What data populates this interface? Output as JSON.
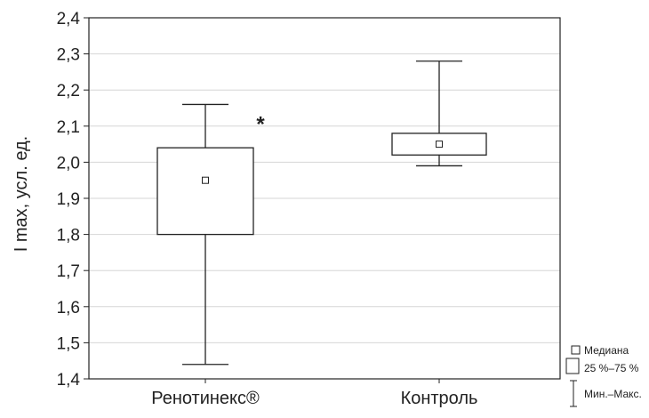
{
  "chart_data": {
    "type": "boxplot",
    "ylabel": "I max, усл. ед.",
    "ylim": [
      1.4,
      2.4
    ],
    "yticks": [
      1.4,
      1.5,
      1.6,
      1.7,
      1.8,
      1.9,
      2.0,
      2.1,
      2.2,
      2.3,
      2.4
    ],
    "ytick_labels": [
      "1,4",
      "1,5",
      "1,6",
      "1,7",
      "1,8",
      "1,9",
      "2,0",
      "2,1",
      "2,2",
      "2,3",
      "2,4"
    ],
    "grid": true,
    "categories": [
      "Ренотинекс®",
      "Контроль"
    ],
    "boxes": [
      {
        "category": "Ренотинекс®",
        "median": 1.95,
        "q1": 1.8,
        "q3": 2.04,
        "min": 1.44,
        "max": 2.16,
        "annotation": "*"
      },
      {
        "category": "Контроль",
        "median": 2.05,
        "q1": 2.02,
        "q3": 2.08,
        "min": 1.99,
        "max": 2.28,
        "annotation": ""
      }
    ],
    "legend": {
      "position": "bottom-right",
      "entries": [
        "Медиана",
        "25 %–75 %",
        "Мин.–Макс."
      ]
    }
  }
}
